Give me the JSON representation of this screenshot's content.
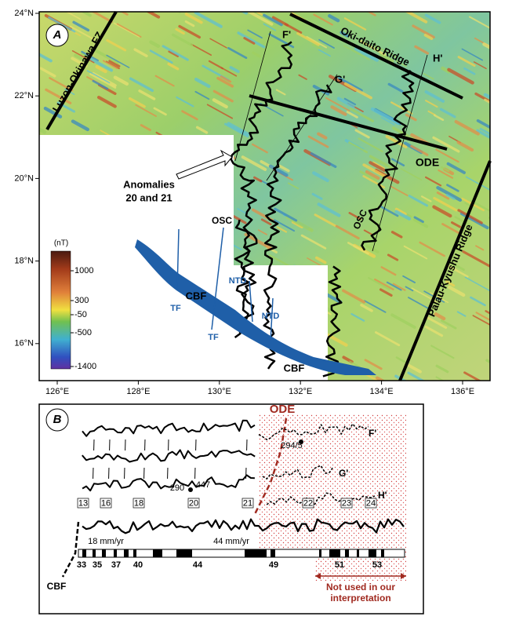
{
  "panel_a": {
    "label": "A",
    "lat_labels": [
      "24°N",
      "22°N",
      "20°N",
      "18°N",
      "16°N"
    ],
    "lon_labels": [
      "126°E",
      "128°E",
      "130°E",
      "132°E",
      "134°E",
      "136°E"
    ],
    "features": {
      "luzon": "Luzon-Okinawa FZ",
      "okidaito": "Oki-daito Ridge",
      "palau": "Palau-Kyushu Ridge",
      "ode": "ODE",
      "osc_1": "OSC",
      "osc_2": "OSC",
      "anomalies": [
        "Anomalies",
        "20 and 21"
      ],
      "profiles": [
        "F'",
        "G'",
        "H'"
      ],
      "tf": [
        "TF",
        "TF"
      ],
      "cbf": [
        "CBF",
        "CBF"
      ],
      "ntd": [
        "NTD",
        "NTD"
      ]
    },
    "colorbar": {
      "unit": "(nT)",
      "labels": [
        "1000",
        "300",
        "-50",
        "-500",
        "-1400"
      ]
    }
  },
  "panel_b": {
    "label": "B",
    "ode": "ODE",
    "profiles": [
      "F'",
      "G'",
      "H'"
    ],
    "points": [
      "294/5",
      "290",
      "447"
    ],
    "anomalies": [
      "13",
      "16",
      "18",
      "20",
      "21",
      "22",
      "23",
      "24"
    ],
    "rates": [
      "18 mm/yr",
      "44 mm/yr"
    ],
    "chrons": [
      "33",
      "35",
      "37",
      "40",
      "44",
      "49",
      "51",
      "53"
    ],
    "cbf": "CBF",
    "note": [
      "Not used in our",
      "interpretation"
    ]
  }
}
